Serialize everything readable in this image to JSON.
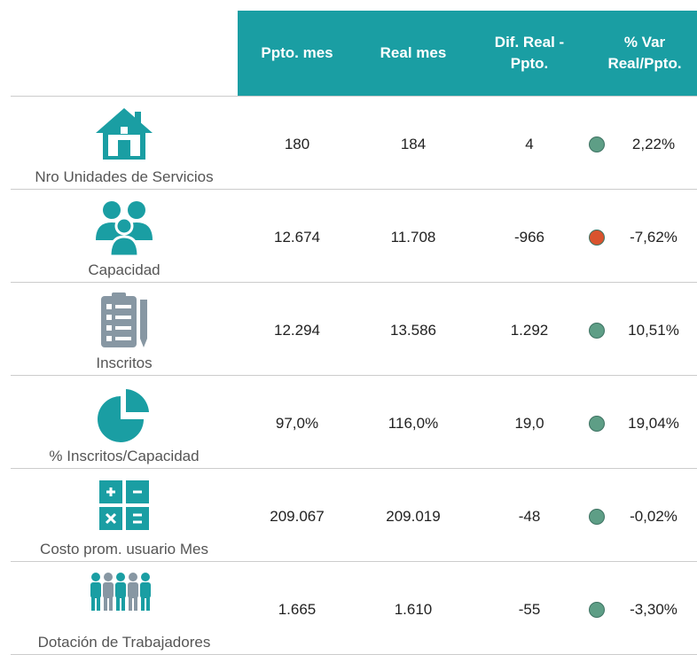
{
  "table": {
    "columns": [
      [
        "Ppto. mes"
      ],
      [
        "Real mes"
      ],
      [
        "Dif. Real -",
        "Ppto."
      ],
      [
        "% Var",
        "Real/Ppto."
      ]
    ],
    "rows": [
      {
        "label": "Nro Unidades de Servicios",
        "cells": [
          "180",
          "184",
          "4",
          "2,22%"
        ],
        "status_color": "#5e9e86"
      },
      {
        "label": "Capacidad",
        "cells": [
          "12.674",
          "11.708",
          "-966",
          "-7,62%"
        ],
        "status_color": "#d9532e"
      },
      {
        "label": "Inscritos",
        "cells": [
          "12.294",
          "13.586",
          "1.292",
          "10,51%"
        ],
        "status_color": "#5e9e86"
      },
      {
        "label": "% Inscritos/Capacidad",
        "cells": [
          "97,0%",
          "116,0%",
          "19,0",
          "19,04%"
        ],
        "status_color": "#5e9e86"
      },
      {
        "label": "Costo prom. usuario Mes",
        "cells": [
          "209.067",
          "209.019",
          "-48",
          "-0,02%"
        ],
        "status_color": "#5e9e86"
      },
      {
        "label": "Dotación de Trabajadores",
        "cells": [
          "1.665",
          "1.610",
          "-55",
          "-3,30%"
        ],
        "status_color": "#5e9e86"
      }
    ]
  }
}
